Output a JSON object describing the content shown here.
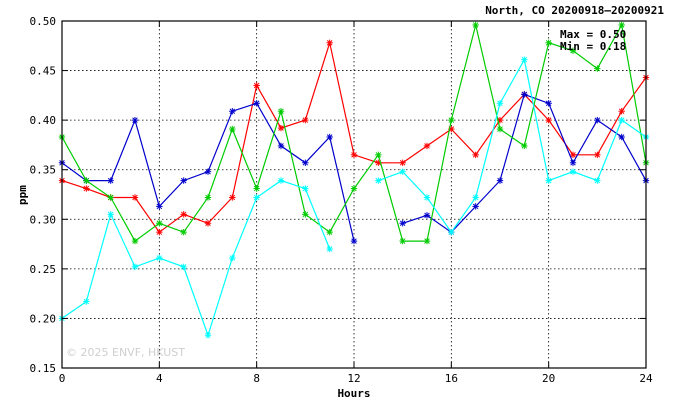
{
  "chart_data": {
    "type": "line",
    "title": "North, CO 20200918–20200921",
    "xlabel": "Hours",
    "ylabel": "ppm",
    "xlim": [
      0,
      24
    ],
    "ylim": [
      0.15,
      0.5
    ],
    "xticks": [
      0,
      4,
      8,
      12,
      16,
      20,
      24
    ],
    "yticks": [
      0.15,
      0.2,
      0.25,
      0.3,
      0.35,
      0.4,
      0.45,
      0.5
    ],
    "grid": true,
    "annotations": {
      "max": "Max = 0.50",
      "min": "Min = 0.18"
    },
    "watermark": "© 2025  ENVF, HKUST",
    "x": [
      0,
      1,
      2,
      3,
      4,
      5,
      6,
      7,
      8,
      9,
      10,
      11,
      12,
      13,
      14,
      15,
      16,
      17,
      18,
      19,
      20,
      21,
      22,
      23,
      24
    ],
    "series": [
      {
        "color": "#ff0000",
        "values": [
          0.339,
          0.331,
          0.322,
          0.322,
          0.287,
          0.305,
          0.296,
          0.322,
          0.435,
          0.392,
          0.4,
          0.478,
          0.365,
          0.357,
          0.357,
          0.374,
          0.391,
          0.365,
          0.4,
          0.426,
          0.4,
          0.365,
          0.365,
          0.409,
          0.443
        ]
      },
      {
        "color": "#0000cc",
        "values": [
          0.357,
          0.339,
          0.339,
          0.4,
          0.313,
          0.339,
          0.348,
          0.409,
          0.417,
          0.374,
          0.357,
          0.383,
          0.278,
          null,
          0.296,
          0.304,
          0.287,
          0.313,
          0.339,
          0.426,
          0.417,
          0.357,
          0.4,
          0.383,
          0.339
        ]
      },
      {
        "color": "#00cc00",
        "values": [
          0.383,
          0.339,
          0.322,
          0.278,
          0.296,
          0.287,
          0.322,
          0.391,
          0.331,
          0.409,
          0.305,
          0.287,
          0.331,
          0.365,
          0.278,
          0.278,
          0.4,
          0.496,
          0.391,
          0.374,
          0.478,
          0.47,
          0.452,
          0.496,
          0.357
        ]
      },
      {
        "color": "#00ffff",
        "values": [
          0.2,
          0.217,
          0.305,
          0.252,
          0.261,
          0.252,
          0.183,
          0.261,
          0.322,
          0.339,
          0.331,
          0.27,
          null,
          0.339,
          0.348,
          0.322,
          0.287,
          0.322,
          0.417,
          0.461,
          0.339,
          0.348,
          0.339,
          0.4,
          0.383
        ]
      }
    ]
  }
}
